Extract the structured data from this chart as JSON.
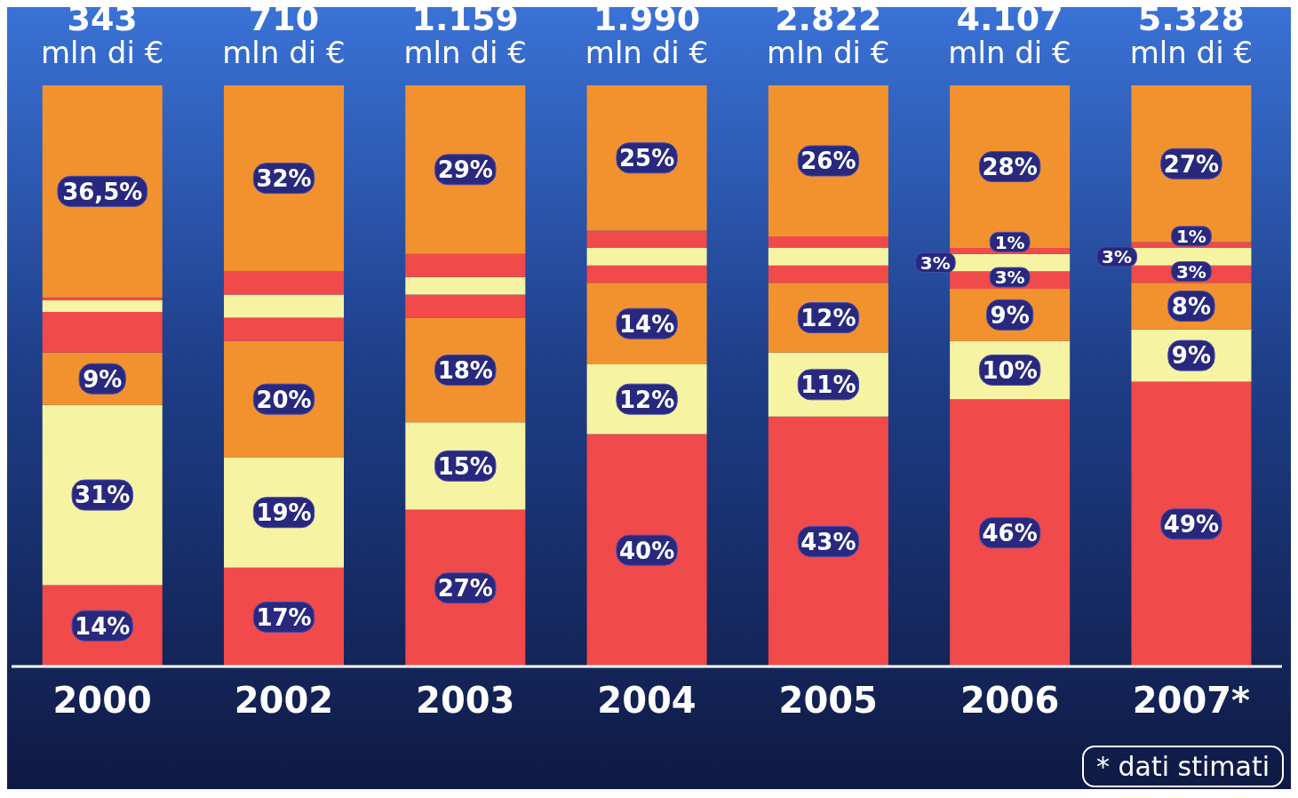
{
  "chart_data": {
    "type": "bar",
    "stacked": true,
    "categories": [
      "2000",
      "2002",
      "2003",
      "2004",
      "2005",
      "2006",
      "2007*"
    ],
    "series": [
      {
        "color": "#f04a4a",
        "values": [
          14,
          17,
          27,
          40,
          43,
          46,
          49
        ],
        "value_labels": [
          "14%",
          "17%",
          "27%",
          "40%",
          "43%",
          "46%",
          "49%"
        ]
      },
      {
        "color": "#f6f4a2",
        "values": [
          31,
          19,
          15,
          12,
          11,
          10,
          9
        ],
        "value_labels": [
          "31%",
          "19%",
          "15%",
          "12%",
          "11%",
          "10%",
          "9%"
        ]
      },
      {
        "color": "#f2922e",
        "values": [
          9,
          20,
          18,
          14,
          12,
          9,
          8
        ],
        "value_labels": [
          "9%",
          "20%",
          "18%",
          "14%",
          "12%",
          "9%",
          "8%"
        ]
      },
      {
        "color": "#f04a4a",
        "values": [
          7,
          4,
          4,
          3,
          3,
          3,
          3
        ],
        "value_labels": [
          null,
          null,
          null,
          null,
          null,
          "3%",
          "3%"
        ]
      },
      {
        "color": "#f6f4a2",
        "values": [
          2,
          4,
          3,
          3,
          3,
          3,
          3
        ],
        "value_labels": [
          null,
          null,
          null,
          null,
          null,
          "3%",
          "3%"
        ]
      },
      {
        "color": "#f04a4a",
        "values": [
          0.5,
          4,
          4,
          3,
          2,
          1,
          1
        ],
        "value_labels": [
          null,
          null,
          null,
          null,
          null,
          "1%",
          "1%"
        ]
      },
      {
        "color": "#f2922e",
        "values": [
          36.5,
          32,
          29,
          25,
          26,
          28,
          27
        ],
        "value_labels": [
          "36,5%",
          "32%",
          "29%",
          "25%",
          "26%",
          "28%",
          "27%"
        ]
      }
    ],
    "annotations": [
      "343 mln di €",
      "710 mln di €",
      "1.159 mln di €",
      "1.990 mln di €",
      "2.822 mln di €",
      "4.107 mln di €",
      "5.328 mln di €",
      "* dati stimati"
    ],
    "grid": false,
    "legend": false
  }
}
